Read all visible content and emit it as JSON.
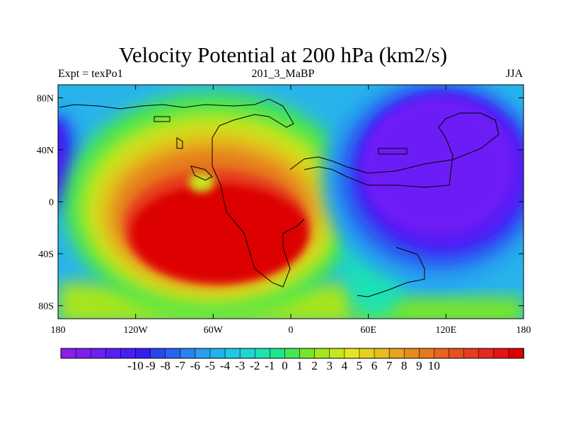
{
  "title": "Velocity Potential at 200 hPa (km2/s)",
  "left_label": "Expt = texPo1",
  "center_label": "201_3_MaBP",
  "right_label": "JJA",
  "axes": {
    "lat_ticks": [
      {
        "value": 80,
        "label": "80N"
      },
      {
        "value": 40,
        "label": "40N"
      },
      {
        "value": 0,
        "label": "0"
      },
      {
        "value": -40,
        "label": "40S"
      },
      {
        "value": -80,
        "label": "80S"
      }
    ],
    "lon_ticks": [
      {
        "value": -180,
        "label": "180"
      },
      {
        "value": -120,
        "label": "120W"
      },
      {
        "value": -60,
        "label": "60W"
      },
      {
        "value": 0,
        "label": "0"
      },
      {
        "value": 60,
        "label": "60E"
      },
      {
        "value": 120,
        "label": "120E"
      },
      {
        "value": 180,
        "label": "180"
      }
    ],
    "lon_range": [
      -180,
      180
    ],
    "lat_range": [
      -90,
      90
    ]
  },
  "colorbar": {
    "colors": [
      "#8c1ee6",
      "#7d1ef0",
      "#6e1ef5",
      "#5a1ef5",
      "#461ef5",
      "#321ef5",
      "#2846f0",
      "#2864f0",
      "#2882f0",
      "#28a0f0",
      "#1eb4eb",
      "#1ec8e6",
      "#1ed7d2",
      "#1ee1b4",
      "#1ee68c",
      "#46e650",
      "#78e628",
      "#a5e61e",
      "#c8e61e",
      "#e6e61e",
      "#e6d21e",
      "#e6be1e",
      "#e6a51e",
      "#e68c1e",
      "#e6781e",
      "#e6641e",
      "#e6501e",
      "#e63c1e",
      "#e6281e",
      "#e61414",
      "#dc0000"
    ],
    "labels": [
      "-10",
      "-9",
      "-8",
      "-7",
      "-6",
      "-5",
      "-4",
      "-3",
      "-2",
      "-1",
      "0",
      "1",
      "2",
      "3",
      "4",
      "5",
      "6",
      "7",
      "8",
      "9",
      "10"
    ]
  },
  "colormap": {
    "dark_purple": "#6a1ae8",
    "blue": "#2850f0",
    "light_blue": "#28a0f0",
    "cyan": "#1ec8e6",
    "teal": "#1ee1b4",
    "green": "#78e628",
    "yellow": "#e6d21e",
    "orange": "#e6781e",
    "red": "#dc0000"
  }
}
